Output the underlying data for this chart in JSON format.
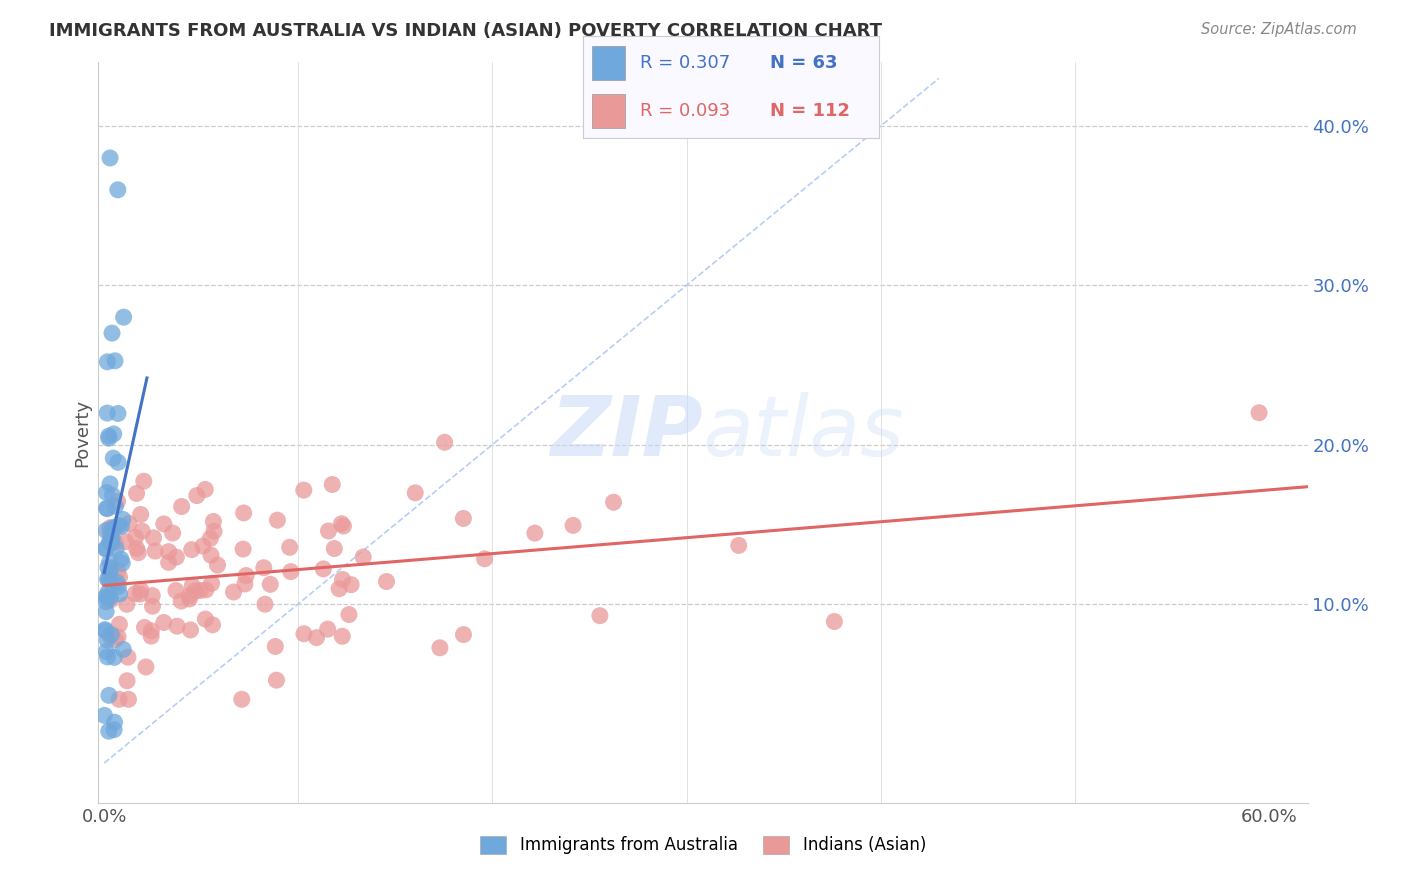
{
  "title": "IMMIGRANTS FROM AUSTRALIA VS INDIAN (ASIAN) POVERTY CORRELATION CHART",
  "source": "Source: ZipAtlas.com",
  "ylabel": "Poverty",
  "color_blue": "#6fa8dc",
  "color_pink": "#ea9999",
  "color_blue_line": "#4472c4",
  "color_pink_line": "#e06666",
  "color_diag": "#a4c2f4",
  "watermark_zip": "ZIP",
  "watermark_atlas": "atlas",
  "background_color": "#ffffff",
  "legend_label1": "Immigrants from Australia",
  "legend_label2": "Indians (Asian)",
  "aus_seed": 42,
  "ind_seed": 99,
  "n_aus": 63,
  "n_ind": 112
}
